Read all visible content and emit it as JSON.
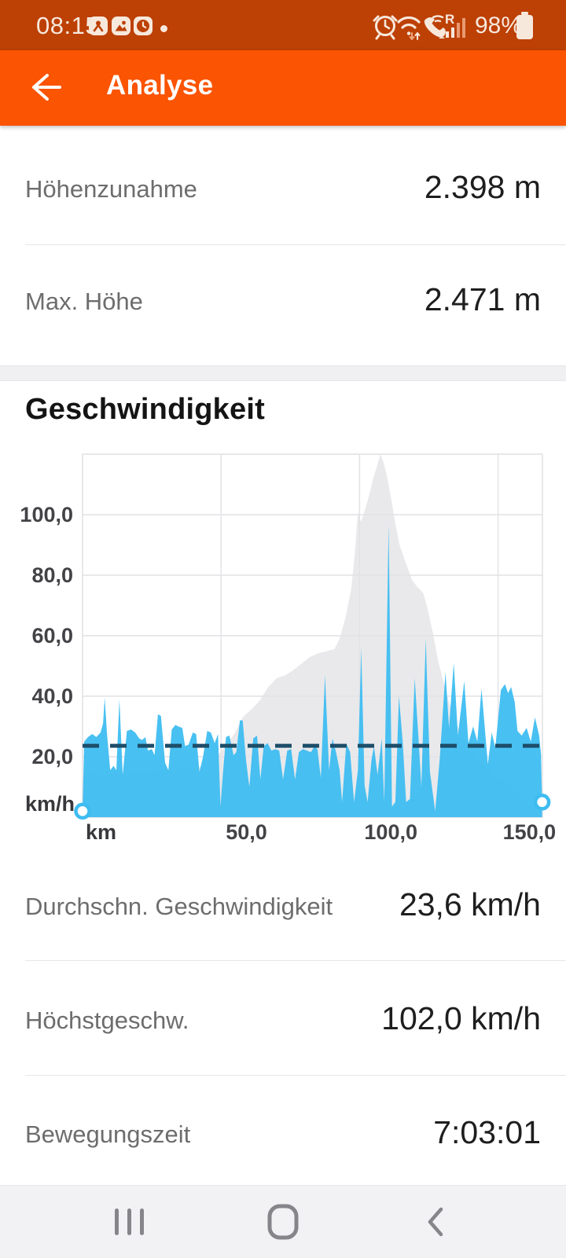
{
  "colors": {
    "status_bar_bg": "#bd4004",
    "header_bg": "#fb5402",
    "speed_blue": "#3dbcf1",
    "average_dash": "#1d4d68",
    "elevation_gray": "#e9e9eb",
    "gridline": "#e2e2e5"
  },
  "status_bar": {
    "time": "08:15",
    "battery_percent": "98%",
    "left_icons": [
      "app-notification-badge-activity",
      "app-notification-badge-gallery",
      "app-notification-badge-clock",
      "notification-dot"
    ],
    "right_icons": [
      "alarm-icon",
      "wifi-icon",
      "wifi-calling-icon",
      "roaming-signal-icon",
      "battery-icon"
    ]
  },
  "header": {
    "title": "Analyse",
    "back_icon": "arrow-left"
  },
  "stats_top": [
    {
      "label": "Höhenzunahme",
      "value": "2.398 m"
    },
    {
      "label": "Max. Höhe",
      "value": "2.471 m"
    }
  ],
  "section_title": "Geschwindigkeit",
  "chart_data": {
    "type": "area",
    "title": "Geschwindigkeit",
    "x_unit_label": "km",
    "y_unit_label": "km/h",
    "x_tick_labels": [
      "50,0",
      "100,0",
      "150,0"
    ],
    "x_tick_values": [
      50,
      100,
      150
    ],
    "y_tick_labels": [
      "20,0",
      "40,0",
      "60,0",
      "80,0",
      "100,0"
    ],
    "y_tick_values": [
      20,
      40,
      60,
      80,
      100
    ],
    "xlim": [
      0,
      166
    ],
    "ylim": [
      0,
      120
    ],
    "grid": true,
    "average_speed_kmh": 23.6,
    "max_elevation_m": 2471,
    "series": [
      {
        "name": "speed_kmh",
        "color": "#3dbcf1",
        "points": [
          [
            0,
            2
          ],
          [
            0.6,
            25
          ],
          [
            2,
            26.5
          ],
          [
            3.5,
            27.5
          ],
          [
            5,
            26.5
          ],
          [
            6.5,
            28
          ],
          [
            7.4,
            31
          ],
          [
            8,
            39.5
          ],
          [
            8.8,
            28
          ],
          [
            10,
            15.5
          ],
          [
            11.2,
            17
          ],
          [
            12.2,
            15.5
          ],
          [
            13.3,
            39
          ],
          [
            14.5,
            14
          ],
          [
            16,
            28.5
          ],
          [
            17.5,
            29
          ],
          [
            19,
            28
          ],
          [
            20.5,
            26
          ],
          [
            21.5,
            25.5
          ],
          [
            22.7,
            26.5
          ],
          [
            23.6,
            22
          ],
          [
            25,
            22.5
          ],
          [
            26,
            20.5
          ],
          [
            27.2,
            34
          ],
          [
            28.3,
            33.5
          ],
          [
            29.8,
            18
          ],
          [
            31,
            15.5
          ],
          [
            32.2,
            29
          ],
          [
            33.5,
            30.5
          ],
          [
            34.6,
            30
          ],
          [
            36,
            29.5
          ],
          [
            37,
            23.5
          ],
          [
            38.3,
            24
          ],
          [
            39.8,
            28
          ],
          [
            41,
            27.5
          ],
          [
            42.2,
            15
          ],
          [
            43.5,
            20
          ],
          [
            45,
            28.5
          ],
          [
            46.3,
            28
          ],
          [
            47.7,
            24.5
          ],
          [
            48.9,
            27.5
          ],
          [
            49.8,
            3.5
          ],
          [
            50.7,
            15
          ],
          [
            51.8,
            26.5
          ],
          [
            53,
            27
          ],
          [
            54.5,
            20.5
          ],
          [
            55.5,
            21.5
          ],
          [
            56.8,
            32
          ],
          [
            57.8,
            32
          ],
          [
            59,
            19
          ],
          [
            60.2,
            10
          ],
          [
            61.6,
            26
          ],
          [
            63,
            27
          ],
          [
            64.2,
            12.5
          ],
          [
            65.4,
            23.5
          ],
          [
            66.8,
            24.5
          ],
          [
            68.2,
            22
          ],
          [
            69.6,
            22.5
          ],
          [
            71,
            22
          ],
          [
            72.4,
            12.5
          ],
          [
            73.9,
            22
          ],
          [
            75.3,
            22.5
          ],
          [
            76.7,
            12.5
          ],
          [
            78.1,
            21.5
          ],
          [
            79.5,
            22.5
          ],
          [
            81,
            22
          ],
          [
            82.4,
            21.5
          ],
          [
            83.8,
            23.5
          ],
          [
            84.8,
            22.5
          ],
          [
            86,
            13
          ],
          [
            87.5,
            47
          ],
          [
            89,
            15.5
          ],
          [
            90.2,
            26
          ],
          [
            91.5,
            21.5
          ],
          [
            92.8,
            15.5
          ],
          [
            93.7,
            5
          ],
          [
            95.2,
            24.5
          ],
          [
            96.6,
            21.5
          ],
          [
            98,
            5
          ],
          [
            99.4,
            15.5
          ],
          [
            100.6,
            56
          ],
          [
            101.8,
            10.5
          ],
          [
            102.9,
            5
          ],
          [
            104.3,
            19
          ],
          [
            105.2,
            23.5
          ],
          [
            106.5,
            14
          ],
          [
            108,
            26
          ],
          [
            108.9,
            5
          ],
          [
            110.5,
            97
          ],
          [
            111.7,
            3.5
          ],
          [
            112.9,
            5
          ],
          [
            114.2,
            40
          ],
          [
            115.6,
            24.5
          ],
          [
            116.8,
            5
          ],
          [
            118.2,
            6
          ],
          [
            119.9,
            46
          ],
          [
            121.3,
            25.5
          ],
          [
            122.3,
            10
          ],
          [
            123.9,
            59
          ],
          [
            125.4,
            15
          ],
          [
            127.3,
            2
          ],
          [
            129,
            20
          ],
          [
            131,
            48
          ],
          [
            132.3,
            29.5
          ],
          [
            134,
            51
          ],
          [
            135.5,
            27
          ],
          [
            137.8,
            45
          ],
          [
            139.3,
            24.5
          ],
          [
            141,
            30
          ],
          [
            142.5,
            25
          ],
          [
            144,
            42.5
          ],
          [
            146.3,
            17.5
          ],
          [
            147.7,
            28
          ],
          [
            149,
            23
          ],
          [
            151,
            42
          ],
          [
            152.5,
            44
          ],
          [
            153.6,
            41
          ],
          [
            154.7,
            43
          ],
          [
            156,
            38
          ],
          [
            157,
            28.5
          ],
          [
            158.5,
            27
          ],
          [
            160.3,
            29.5
          ],
          [
            161.8,
            25
          ],
          [
            163.3,
            33
          ],
          [
            164.8,
            27
          ],
          [
            165.5,
            21
          ],
          [
            165.9,
            5
          ]
        ]
      },
      {
        "name": "elevation_m",
        "color": "#e9e9eb",
        "points": [
          [
            0,
            280
          ],
          [
            4,
            300
          ],
          [
            8,
            285
          ],
          [
            12,
            310
          ],
          [
            16,
            295
          ],
          [
            20,
            320
          ],
          [
            24,
            305
          ],
          [
            28,
            330
          ],
          [
            32,
            320
          ],
          [
            36,
            340
          ],
          [
            40,
            330
          ],
          [
            44,
            350
          ],
          [
            47,
            385
          ],
          [
            49,
            430
          ],
          [
            52,
            490
          ],
          [
            55,
            575
          ],
          [
            58,
            685
          ],
          [
            61,
            735
          ],
          [
            64,
            795
          ],
          [
            67,
            885
          ],
          [
            70,
            945
          ],
          [
            73,
            965
          ],
          [
            76,
            1000
          ],
          [
            79,
            1045
          ],
          [
            82,
            1090
          ],
          [
            85,
            1115
          ],
          [
            88,
            1130
          ],
          [
            91,
            1145
          ],
          [
            93,
            1225
          ],
          [
            95,
            1365
          ],
          [
            97,
            1555
          ],
          [
            98.3,
            1800
          ],
          [
            99.4,
            2075
          ],
          [
            100.5,
            2010
          ],
          [
            101.6,
            2070
          ],
          [
            103,
            2160
          ],
          [
            105,
            2310
          ],
          [
            106.3,
            2390
          ],
          [
            107.5,
            2471
          ],
          [
            108.6,
            2420
          ],
          [
            110,
            2310
          ],
          [
            111.5,
            2160
          ],
          [
            113,
            1990
          ],
          [
            114.5,
            1850
          ],
          [
            116.5,
            1740
          ],
          [
            118.8,
            1620
          ],
          [
            120.7,
            1570
          ],
          [
            123,
            1525
          ],
          [
            124.4,
            1430
          ],
          [
            126.4,
            1260
          ],
          [
            128.4,
            1060
          ],
          [
            130.5,
            905
          ],
          [
            132.5,
            770
          ],
          [
            134.5,
            660
          ],
          [
            136.5,
            570
          ],
          [
            139,
            480
          ],
          [
            142,
            405
          ],
          [
            145,
            345
          ],
          [
            148,
            295
          ],
          [
            152,
            245
          ],
          [
            156,
            185
          ],
          [
            159,
            125
          ],
          [
            162,
            65
          ],
          [
            164.5,
            25
          ],
          [
            166,
            5
          ]
        ]
      }
    ]
  },
  "stats_bottom": [
    {
      "label": "Durchschn. Geschwindigkeit",
      "value": "23,6 km/h"
    },
    {
      "label": "Höchstgeschw.",
      "value": "102,0 km/h"
    },
    {
      "label": "Bewegungszeit",
      "value": "7:03:01"
    }
  ],
  "nav_bar": {
    "buttons": [
      "recents",
      "home",
      "back"
    ]
  }
}
